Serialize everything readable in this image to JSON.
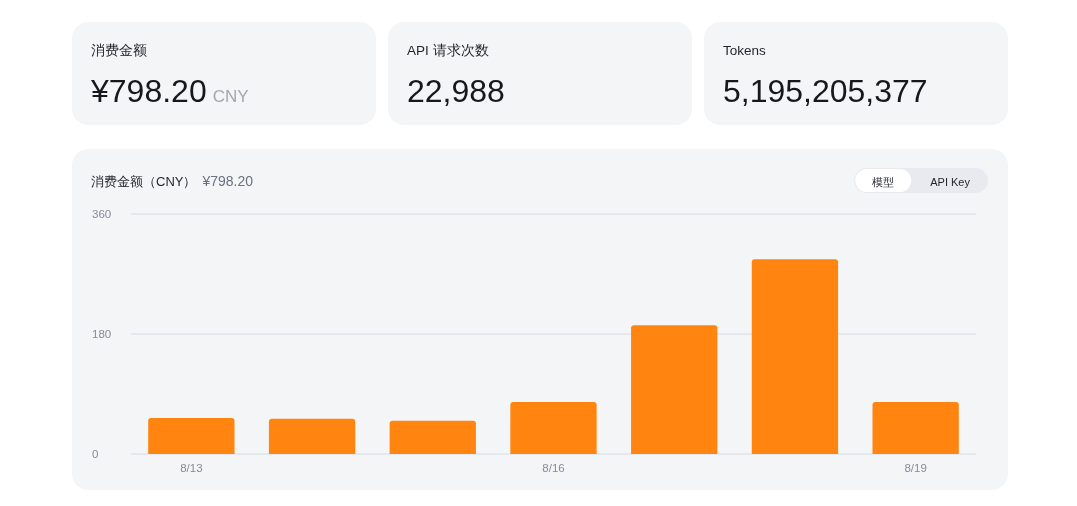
{
  "chart_data": [
    {
      "type": "other",
      "title": "消费金额",
      "annotations": [
        "¥798.20",
        "CNY"
      ]
    },
    {
      "type": "other",
      "title": "API 请求次数",
      "annotations": [
        "22,988"
      ]
    },
    {
      "type": "other",
      "title": "Tokens",
      "annotations": [
        "5,195,205,377"
      ]
    },
    {
      "type": "bar",
      "title": "消费金额（CNY）",
      "subtitle": "¥798.20",
      "categories": [
        "8/13",
        null,
        null,
        "8/16",
        null,
        null,
        "8/19"
      ],
      "series": [
        {
          "color": "#ff8410",
          "values": [
            54,
            53,
            50,
            78,
            193,
            292,
            78
          ]
        }
      ],
      "ylim": [
        0,
        360
      ],
      "yticks": [
        0,
        180,
        360
      ],
      "grid": "y",
      "annotations": [
        "模型",
        "API Key"
      ]
    }
  ]
}
